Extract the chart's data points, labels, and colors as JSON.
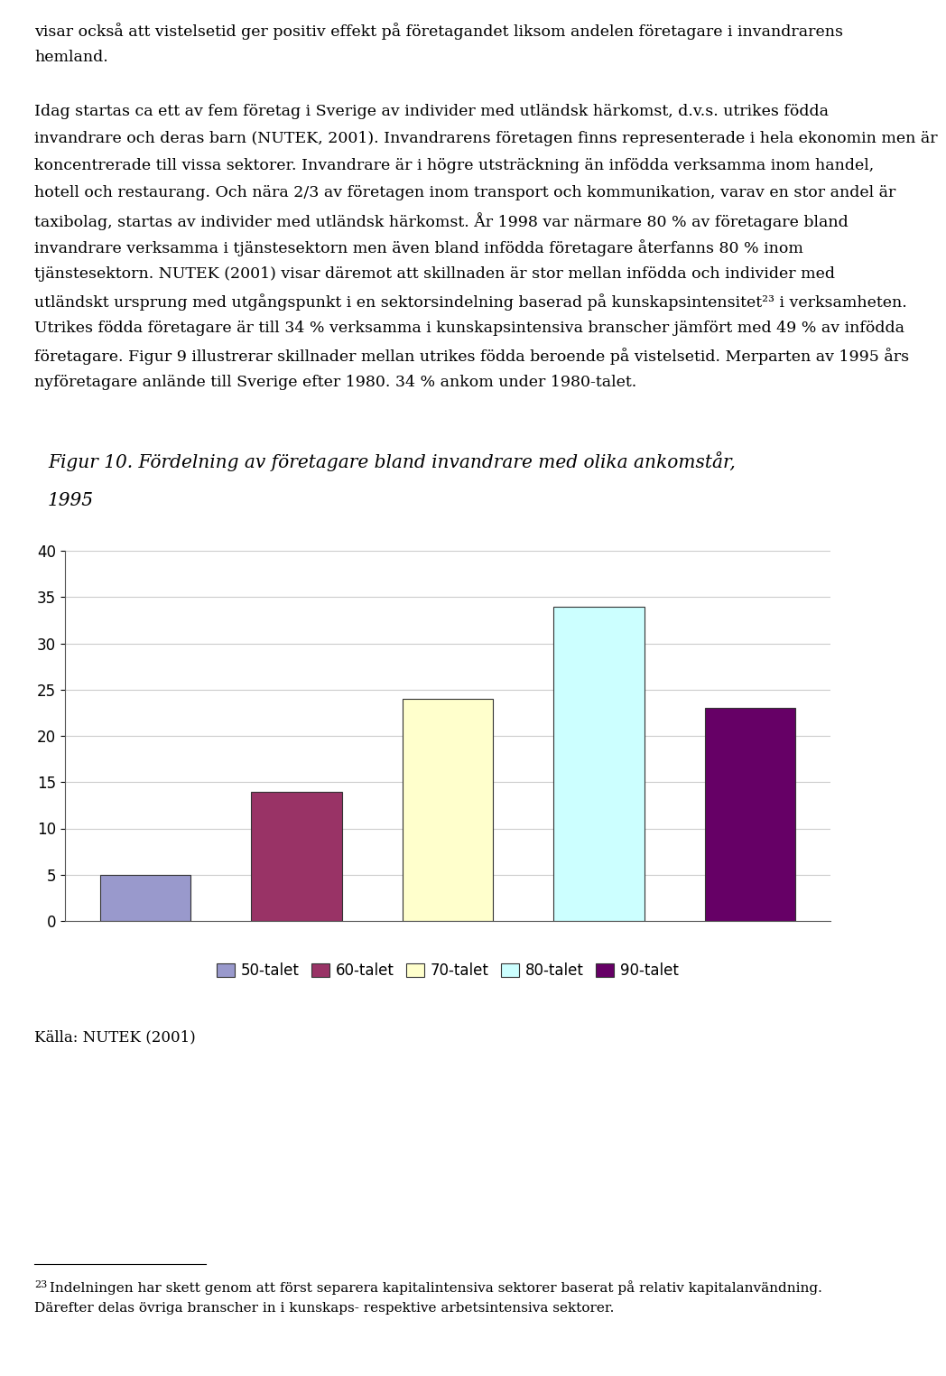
{
  "title_line1": "Figur 10. Fördelning av företagare bland invandrare med olika ankomstår,",
  "title_line2": "1995",
  "categories": [
    "50-talet",
    "60-talet",
    "70-talet",
    "80-talet",
    "90-talet"
  ],
  "values": [
    5,
    14,
    24,
    34,
    23
  ],
  "bar_colors": [
    "#9999cc",
    "#993366",
    "#ffffcc",
    "#ccffff",
    "#660066"
  ],
  "bar_edge_color": "#333333",
  "ylim": [
    0,
    40
  ],
  "yticks": [
    0,
    5,
    10,
    15,
    20,
    25,
    30,
    35,
    40
  ],
  "source": "Källa: NUTEK (2001)",
  "legend_labels": [
    "50-talet",
    "60-talet",
    "70-talet",
    "80-talet",
    "90-talet"
  ],
  "grid_color": "#cccccc",
  "background_color": "#ffffff",
  "para1_line1": "visar också att vistelsetid ger positiv effekt på företagandet liksom andelen företagare i invandrarens",
  "para1_line2": "hemland.",
  "para2_line1": "Idag startas ca ett av fem företag i Sverige av individer med utländsk härkomst, d.v.s. utrikes födda",
  "para2_line2": "invandrare och deras barn (NUTEK, 2001). Invandrarens företagen finns representerade i hela ekonomin men är",
  "para2_line3": "koncentrerade till vissa sektorer. Invandrare är i högre utsträckning än infödda verksamma inom handel,",
  "para2_line4": "hotell och restaurang. Och nära 2/3 av företagen inom transport och kommunikation, varav en stor andel är",
  "para2_line5": "taxibolag, startas av individer med utländsk härkomst. År 1998 var närmare 80 % av företagare bland",
  "para2_line6": "invandrare verksamma i tjänstesektorn men även bland infödda företagare återfanns 80 % inom",
  "para2_line7": "tjänstesektorn. NUTEK (2001) visar däremot att skillnaden är stor mellan infödda och individer med",
  "para2_line8": "utländskt ursprung med utgångspunkt i en sektorsindelning baserad på kunskapsintensitet²³ i verksamheten.",
  "para2_line9": "Utrikes födda företagare är till 34 % verksamma i kunskapsintensiva branscher jämfört med 49 % av infödda",
  "para2_line10": "företagare. Figur 9 illustrerar skillnader mellan utrikes födda beroende på vistelsetid. Merparten av 1995 års",
  "para2_line11": "nyföretagare anlände till Sverige efter 1980. 34 % ankom under 1980-talet.",
  "footnote_superscript": "23",
  "footnote_text": " Indelningen har skett genom att först separera kapitalintensiva sektorer baserat på relativ kapitalanvändning.",
  "footnote_text2": "Därefter delas övriga branscher in i kunskaps- respektive arbetsintensiva sektorer."
}
